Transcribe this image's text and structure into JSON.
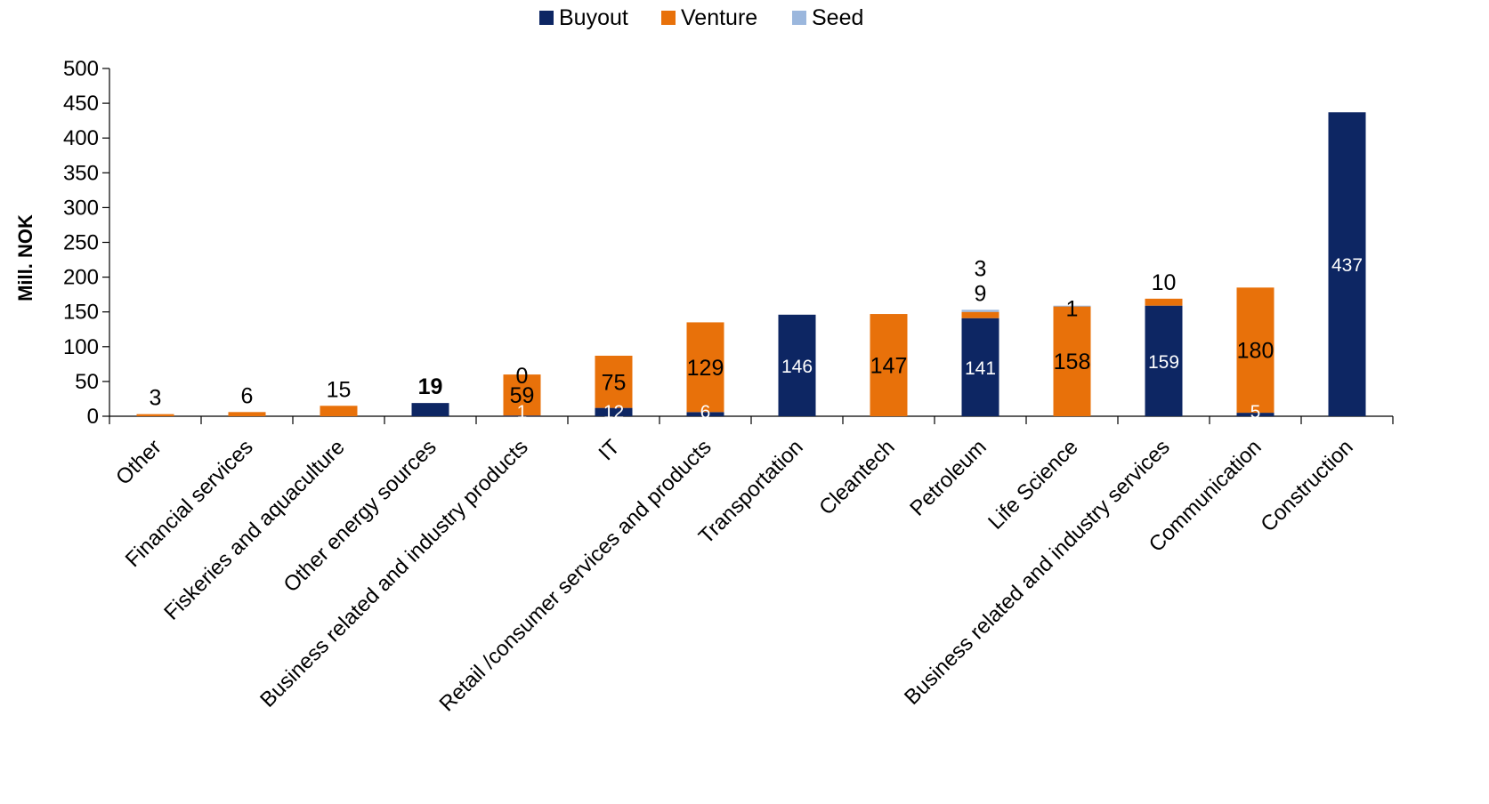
{
  "chart_data": {
    "type": "bar",
    "stacked": true,
    "ylabel": "Mill. NOK",
    "ylim": [
      0,
      500
    ],
    "yticks": [
      0,
      50,
      100,
      150,
      200,
      250,
      300,
      350,
      400,
      450,
      500
    ],
    "legend_position": "top-center",
    "categories": [
      "Other",
      "Financial services",
      "Fiskeries and aquaculture",
      "Other energy sources",
      "Business related and industry products",
      "IT",
      "Retail /consumer services and products",
      "Transportation",
      "Cleantech",
      "Petroleum",
      "Life Science",
      "Business related and industry services",
      "Communication",
      "Construction"
    ],
    "series": [
      {
        "name": "Buyout",
        "color": "#0d2663",
        "values": [
          0,
          0,
          0,
          19,
          1,
          12,
          6,
          146,
          0,
          141,
          0,
          159,
          5,
          437
        ]
      },
      {
        "name": "Venture",
        "color": "#e8710a",
        "values": [
          3,
          6,
          15,
          0,
          59,
          75,
          129,
          0,
          147,
          9,
          158,
          10,
          180,
          0
        ]
      },
      {
        "name": "Seed",
        "color": "#9bb7dd",
        "values": [
          0,
          0,
          0,
          0,
          0,
          0,
          0,
          0,
          0,
          3,
          1,
          0,
          0,
          0
        ]
      }
    ],
    "data_labels": [
      {
        "category": 0,
        "text": "3",
        "style": "dark",
        "pos": "above"
      },
      {
        "category": 1,
        "text": "6",
        "style": "dark",
        "pos": "above"
      },
      {
        "category": 2,
        "text": "15",
        "style": "dark",
        "pos": "above"
      },
      {
        "category": 3,
        "text": "19",
        "style": "bold",
        "pos": "above"
      },
      {
        "category": 4,
        "text": "0",
        "style": "dark",
        "pos": "above"
      },
      {
        "category": 4,
        "text": "59",
        "style": "dark",
        "pos": "venture"
      },
      {
        "category": 4,
        "text": "1",
        "style": "white",
        "pos": "base"
      },
      {
        "category": 5,
        "text": "75",
        "style": "dark",
        "pos": "venture"
      },
      {
        "category": 5,
        "text": "12",
        "style": "white",
        "pos": "base"
      },
      {
        "category": 6,
        "text": "129",
        "style": "dark",
        "pos": "venture"
      },
      {
        "category": 6,
        "text": "6",
        "style": "white",
        "pos": "base"
      },
      {
        "category": 7,
        "text": "146",
        "style": "white",
        "pos": "buyout"
      },
      {
        "category": 8,
        "text": "147",
        "style": "dark",
        "pos": "venture"
      },
      {
        "category": 9,
        "text": "3",
        "style": "dark",
        "pos": "above2"
      },
      {
        "category": 9,
        "text": "9",
        "style": "dark",
        "pos": "above"
      },
      {
        "category": 9,
        "text": "141",
        "style": "white",
        "pos": "buyout"
      },
      {
        "category": 10,
        "text": "1",
        "style": "dark",
        "pos": "top"
      },
      {
        "category": 10,
        "text": "158",
        "style": "dark",
        "pos": "venture"
      },
      {
        "category": 11,
        "text": "10",
        "style": "dark",
        "pos": "above"
      },
      {
        "category": 11,
        "text": "159",
        "style": "white",
        "pos": "buyout"
      },
      {
        "category": 12,
        "text": "180",
        "style": "dark",
        "pos": "venture"
      },
      {
        "category": 12,
        "text": "5",
        "style": "white",
        "pos": "base"
      },
      {
        "category": 13,
        "text": "437",
        "style": "white",
        "pos": "buyout"
      }
    ]
  }
}
